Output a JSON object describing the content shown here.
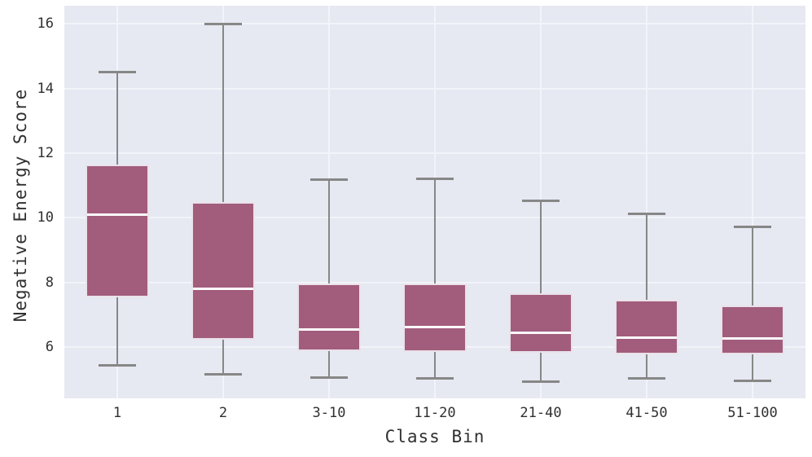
{
  "chart_data": {
    "type": "boxplot",
    "title": "",
    "xlabel": "Class Bin",
    "ylabel": "Negative Energy Score",
    "categories": [
      "1",
      "2",
      "3-10",
      "11-20",
      "21-40",
      "41-50",
      "51-100"
    ],
    "yticks": [
      6,
      8,
      10,
      12,
      14,
      16
    ],
    "ylim": [
      4.42,
      16.56
    ],
    "grid": true,
    "legend": false,
    "series": [
      {
        "category": "1",
        "whisker_low": 5.43,
        "q1": 7.54,
        "median": 10.1,
        "q3": 11.64,
        "whisker_high": 14.53
      },
      {
        "category": "2",
        "whisker_low": 5.15,
        "q1": 6.24,
        "median": 7.8,
        "q3": 10.5,
        "whisker_high": 16.0
      },
      {
        "category": "3-10",
        "whisker_low": 5.05,
        "q1": 5.88,
        "median": 6.54,
        "q3": 7.96,
        "whisker_high": 11.19
      },
      {
        "category": "11-20",
        "whisker_low": 5.03,
        "q1": 5.86,
        "median": 6.62,
        "q3": 7.96,
        "whisker_high": 11.22
      },
      {
        "category": "21-40",
        "whisker_low": 4.93,
        "q1": 5.83,
        "median": 6.44,
        "q3": 7.66,
        "whisker_high": 10.53
      },
      {
        "category": "41-50",
        "whisker_low": 5.02,
        "q1": 5.78,
        "median": 6.29,
        "q3": 7.46,
        "whisker_high": 10.14
      },
      {
        "category": "51-100",
        "whisker_low": 4.95,
        "q1": 5.78,
        "median": 6.27,
        "q3": 7.3,
        "whisker_high": 9.73
      }
    ],
    "colors": {
      "plot_bg": "#e6e9f2",
      "grid": "#f2f4f9",
      "box_fill": "#a25c7c",
      "box_edge": "#eae2e9",
      "median": "#fcfcfd",
      "whisker": "#878787",
      "text": "#303030"
    }
  }
}
